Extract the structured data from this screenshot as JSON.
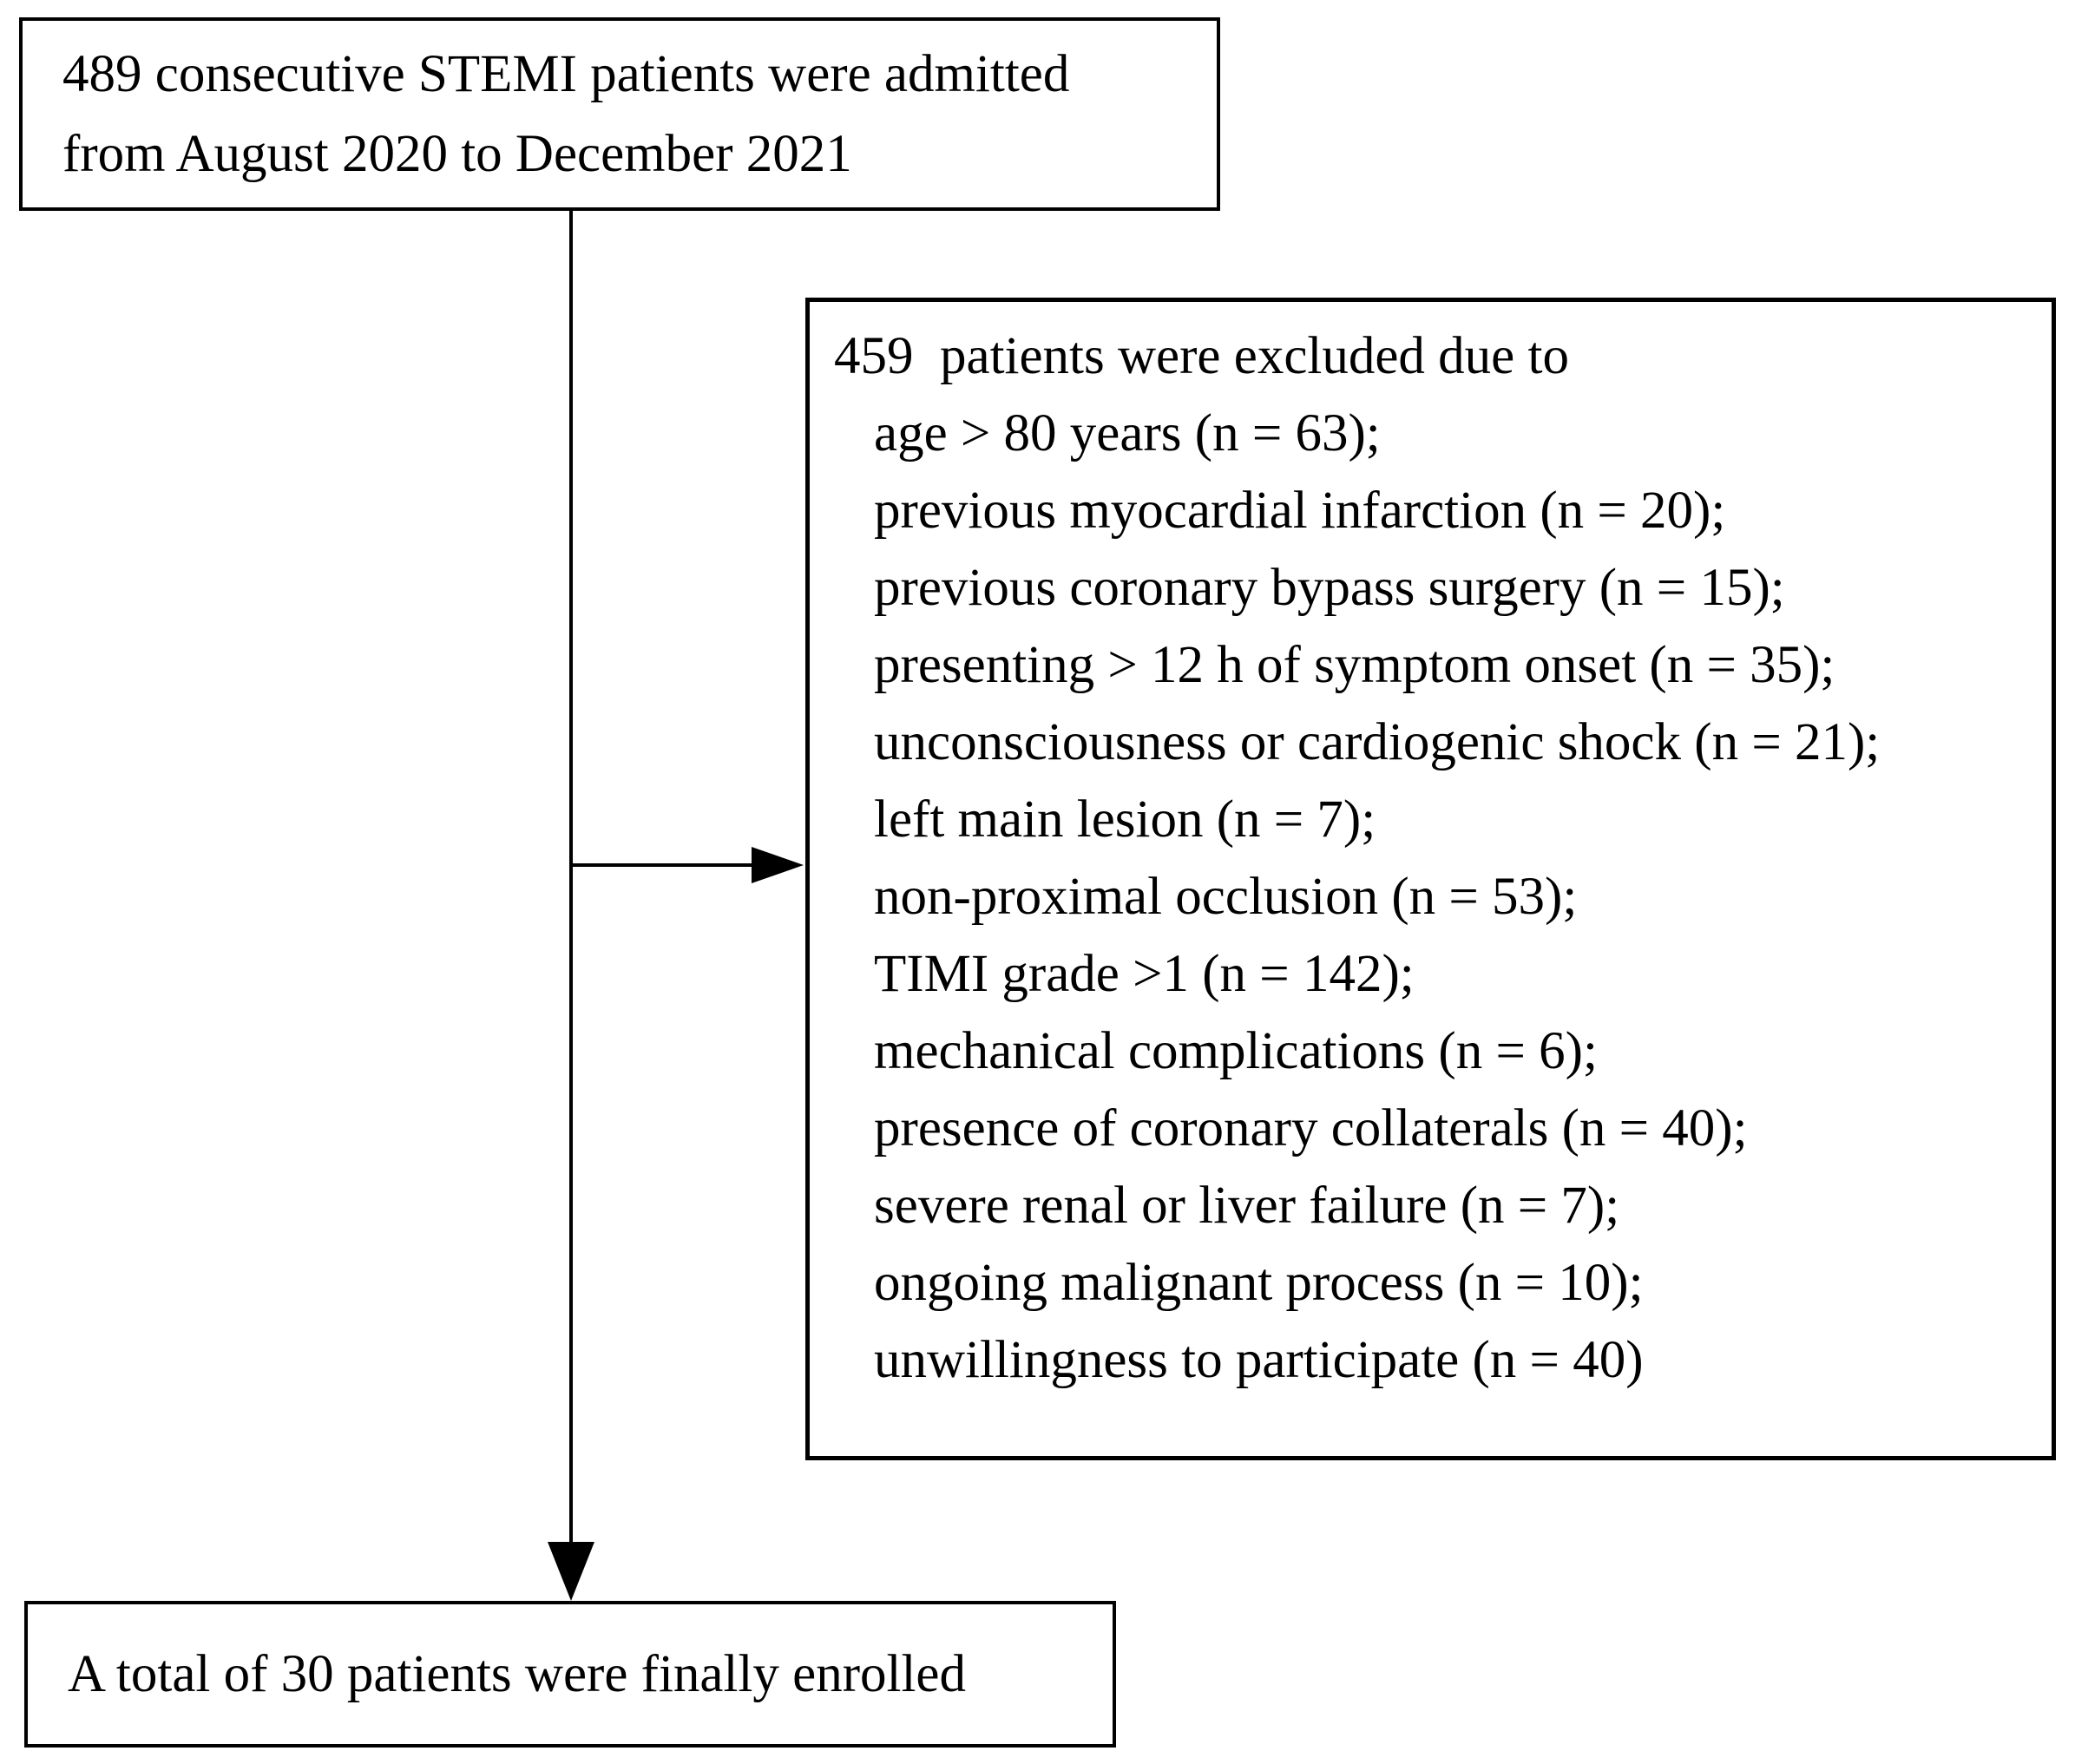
{
  "colors": {
    "background": "#ffffff",
    "text": "#000000",
    "box_border": "#000000",
    "connector": "#000000"
  },
  "admitted_box": {
    "line1": "489 consecutive STEMI patients were admitted",
    "line2": "from August 2020 to December 2021"
  },
  "excluded_box": {
    "heading": "459  patients were excluded due to",
    "items": [
      "age > 80 years (n = 63);",
      "previous myocardial infarction (n = 20);",
      "previous coronary bypass surgery (n = 15);",
      "presenting > 12 h of symptom onset (n = 35);",
      "unconsciousness or cardiogenic shock (n = 21);",
      "left main lesion (n = 7);",
      "non-proximal occlusion (n = 53);",
      "TIMI grade >1 (n = 142);",
      "mechanical complications (n = 6);",
      "presence of coronary collaterals (n = 40);",
      "severe renal or liver failure (n = 7);",
      "ongoing malignant process (n = 10);",
      "unwillingness to participate (n = 40)"
    ]
  },
  "enrolled_box": {
    "text": "A total of 30 patients were finally enrolled"
  }
}
